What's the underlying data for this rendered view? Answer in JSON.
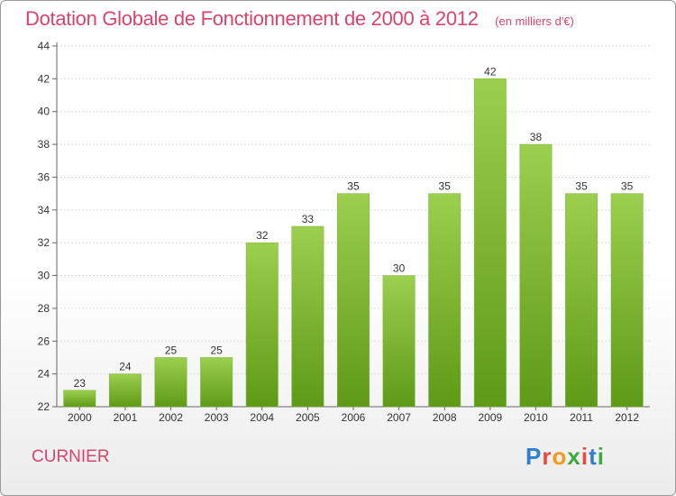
{
  "header": {
    "title": "Dotation Globale de Fonctionnement de 2000 à 2012",
    "subtitle": "(en milliers d'€)"
  },
  "commune": "CURNIER",
  "logo": {
    "text": "Proxiti",
    "colors": [
      "#2e7fd0",
      "#e84a3c",
      "#f29a1c",
      "#3caa3c",
      "#e84a3c",
      "#2e7fd0",
      "#3caa3c"
    ]
  },
  "colors": {
    "bar_top": "#9ccf4e",
    "bar_bottom": "#5e9a17",
    "accent": "#d8456a"
  },
  "chart_data": {
    "type": "bar",
    "title": "Dotation Globale de Fonctionnement de 2000 à 2012",
    "subtitle": "(en milliers d'€)",
    "categories": [
      "2000",
      "2001",
      "2002",
      "2003",
      "2004",
      "2005",
      "2006",
      "2007",
      "2008",
      "2009",
      "2010",
      "2011",
      "2012"
    ],
    "values": [
      23,
      24,
      25,
      25,
      32,
      33,
      35,
      30,
      35,
      42,
      38,
      35,
      35
    ],
    "ylim": [
      22,
      44
    ],
    "yticks": [
      22,
      24,
      26,
      28,
      30,
      32,
      34,
      36,
      38,
      40,
      42,
      44
    ],
    "grid": true,
    "xlabel": "",
    "ylabel": ""
  }
}
